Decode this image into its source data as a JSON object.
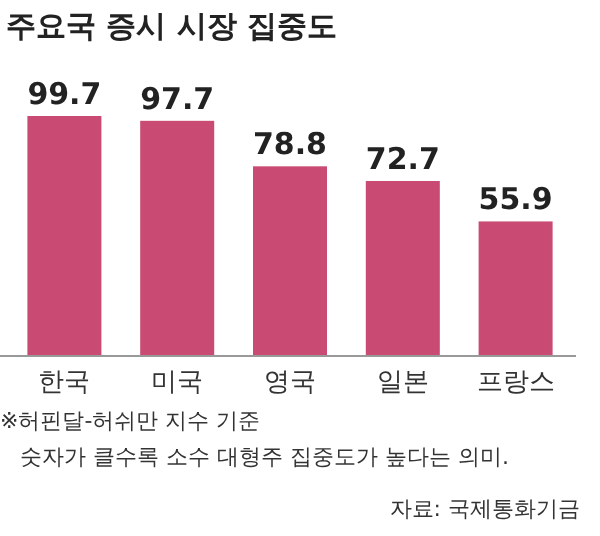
{
  "chart_data": {
    "type": "bar",
    "title": "주요국 증시 시장 집중도",
    "categories": [
      "한국",
      "미국",
      "영국",
      "일본",
      "프랑스"
    ],
    "values": [
      99.7,
      97.7,
      78.8,
      72.7,
      55.9
    ],
    "color": "#c94a72",
    "data_labels": true,
    "annotations": [
      "※허핀달-허쉬만 지수 기준",
      "숫자가 클수록 소수 대형주 집중도가 높다는 의미.",
      "자료: 국제통화기금"
    ]
  }
}
